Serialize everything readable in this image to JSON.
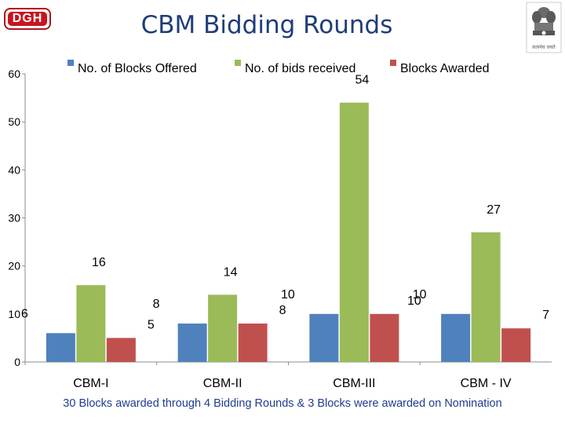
{
  "header": {
    "logo_text": "DGH",
    "title": "CBM Bidding Rounds",
    "emblem_caption": "सत्यमेव जयते"
  },
  "chart_data": {
    "type": "bar",
    "title": "CBM Bidding Rounds",
    "xlabel": "",
    "ylabel": "",
    "ylim": [
      0,
      60
    ],
    "yticks": [
      0,
      10,
      20,
      30,
      40,
      50,
      60
    ],
    "grid": false,
    "legend_position": "top",
    "categories": [
      "CBM-I",
      "CBM-II",
      "CBM-III",
      "CBM - IV"
    ],
    "series": [
      {
        "name": "No. of Blocks Offered",
        "color": "#4f81bd",
        "values": [
          6,
          8,
          10,
          10
        ]
      },
      {
        "name": "No. of bids received",
        "color": "#9bbb59",
        "values": [
          16,
          14,
          54,
          27
        ]
      },
      {
        "name": "Blocks Awarded",
        "color": "#c0504d",
        "values": [
          5,
          8,
          10,
          7
        ]
      }
    ]
  },
  "footnote": "30 Blocks awarded through 4 Bidding Rounds & 3 Blocks were awarded on Nomination"
}
